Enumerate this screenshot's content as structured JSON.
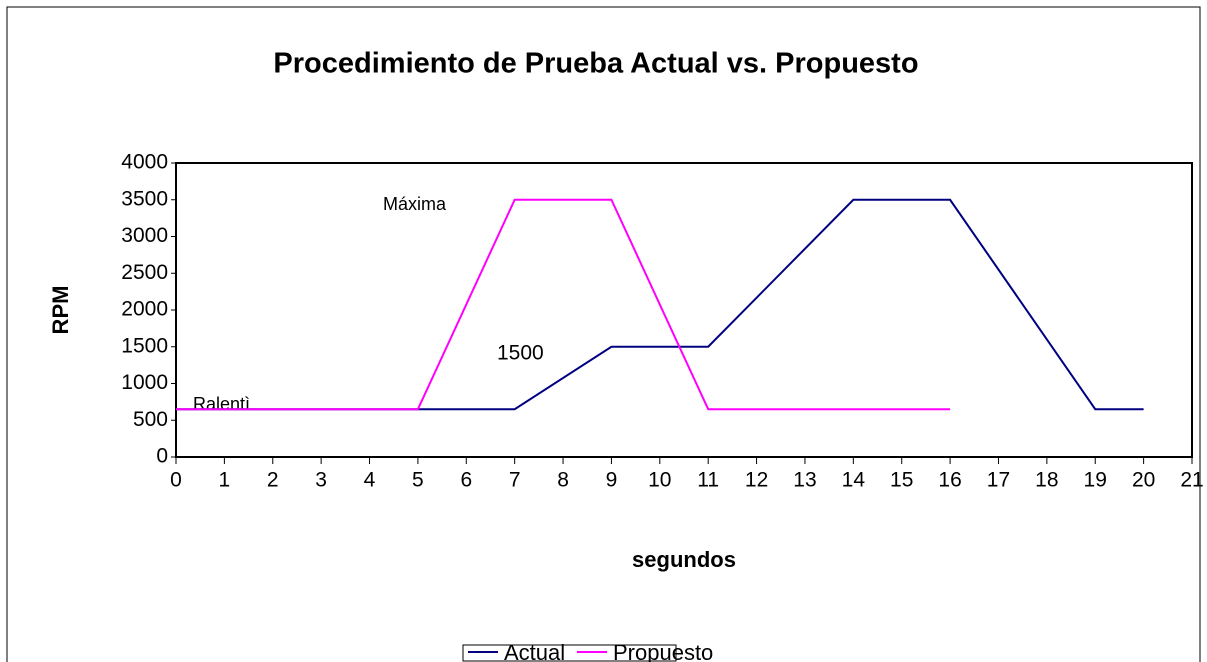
{
  "chart_data": {
    "type": "line",
    "title": "Procedimiento de Prueba Actual vs. Propuesto",
    "xlabel": "segundos",
    "ylabel": "RPM",
    "xlim": [
      0,
      21
    ],
    "xticks": [
      0,
      1,
      2,
      3,
      4,
      5,
      6,
      7,
      8,
      9,
      10,
      11,
      12,
      13,
      14,
      15,
      16,
      17,
      18,
      19,
      20,
      21
    ],
    "ylim": [
      0,
      4000
    ],
    "yticks": [
      0,
      500,
      1000,
      1500,
      2000,
      2500,
      3000,
      3500,
      4000
    ],
    "grid": false,
    "legend": "bottom",
    "series": [
      {
        "name": "Actual",
        "color": "#000080",
        "x": [
          0,
          5,
          7,
          9,
          11,
          14,
          16,
          19,
          20
        ],
        "values": [
          650,
          650,
          650,
          1500,
          1500,
          3500,
          3500,
          650,
          650
        ]
      },
      {
        "name": "Propuesto",
        "color": "#ff00ff",
        "x": [
          0,
          5,
          7,
          9,
          11,
          16
        ],
        "values": [
          650,
          650,
          3500,
          3500,
          650,
          650
        ]
      }
    ],
    "annotations": [
      "Máxima",
      "1500",
      "Ralentì"
    ]
  }
}
